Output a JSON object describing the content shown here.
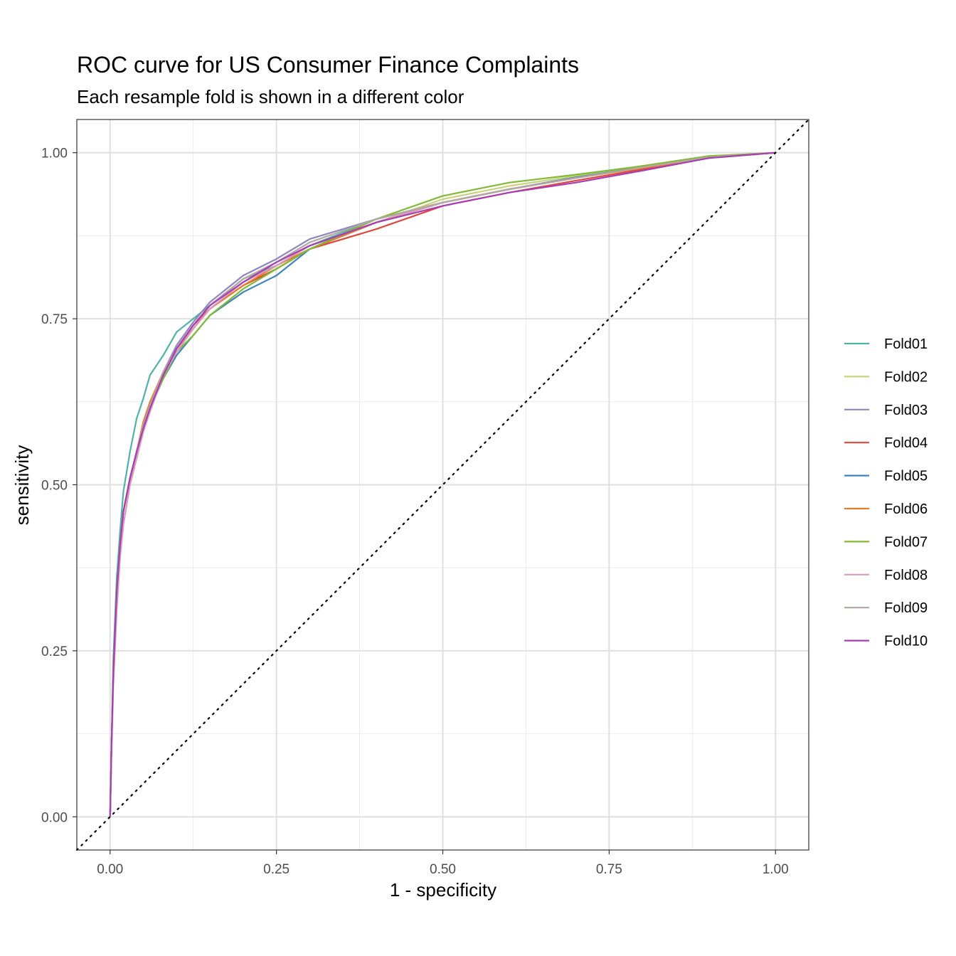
{
  "chart_data": {
    "type": "line",
    "title": "ROC curve for US Consumer Finance Complaints",
    "subtitle": "Each resample fold is shown in a different color",
    "xlabel": "1 - specificity",
    "ylabel": "sensitivity",
    "xlim": [
      -0.05,
      1.05
    ],
    "ylim": [
      -0.05,
      1.05
    ],
    "x_ticks": [
      "0.00",
      "0.25",
      "0.50",
      "0.75",
      "1.00"
    ],
    "y_ticks": [
      "0.00",
      "0.25",
      "0.50",
      "0.75",
      "1.00"
    ],
    "grid": true,
    "legend_position": "right",
    "reference_line": {
      "style": "dotted",
      "color": "#000000",
      "x": [
        -0.05,
        1.05
      ],
      "y": [
        -0.05,
        1.05
      ]
    },
    "x": [
      0,
      0.002,
      0.005,
      0.01,
      0.015,
      0.02,
      0.03,
      0.04,
      0.05,
      0.06,
      0.08,
      0.1,
      0.125,
      0.15,
      0.2,
      0.25,
      0.3,
      0.4,
      0.5,
      0.6,
      0.7,
      0.8,
      0.9,
      1.0
    ],
    "series": [
      {
        "name": "Fold01",
        "color": "#4fb3a5",
        "values": [
          0,
          0.1,
          0.24,
          0.36,
          0.43,
          0.49,
          0.55,
          0.6,
          0.63,
          0.665,
          0.695,
          0.73,
          0.75,
          0.77,
          0.81,
          0.83,
          0.86,
          0.9,
          0.925,
          0.945,
          0.963,
          0.978,
          0.993,
          1.0
        ]
      },
      {
        "name": "Fold02",
        "color": "#c9d47a",
        "values": [
          0,
          0.1,
          0.22,
          0.34,
          0.41,
          0.46,
          0.51,
          0.55,
          0.59,
          0.62,
          0.67,
          0.7,
          0.735,
          0.765,
          0.8,
          0.825,
          0.855,
          0.895,
          0.93,
          0.95,
          0.965,
          0.98,
          0.995,
          1.0
        ]
      },
      {
        "name": "Fold03",
        "color": "#8f85c1",
        "values": [
          0,
          0.1,
          0.22,
          0.34,
          0.41,
          0.46,
          0.51,
          0.55,
          0.59,
          0.62,
          0.67,
          0.71,
          0.745,
          0.775,
          0.815,
          0.84,
          0.87,
          0.9,
          0.925,
          0.945,
          0.962,
          0.978,
          0.993,
          1.0
        ]
      },
      {
        "name": "Fold04",
        "color": "#e0473c",
        "values": [
          0,
          0.1,
          0.22,
          0.34,
          0.41,
          0.46,
          0.51,
          0.55,
          0.59,
          0.62,
          0.67,
          0.705,
          0.74,
          0.765,
          0.8,
          0.825,
          0.855,
          0.885,
          0.92,
          0.94,
          0.958,
          0.975,
          0.992,
          1.0
        ]
      },
      {
        "name": "Fold05",
        "color": "#3f84c0",
        "values": [
          0,
          0.1,
          0.22,
          0.34,
          0.41,
          0.46,
          0.51,
          0.55,
          0.585,
          0.615,
          0.66,
          0.695,
          0.725,
          0.755,
          0.79,
          0.815,
          0.855,
          0.895,
          0.925,
          0.945,
          0.963,
          0.978,
          0.993,
          1.0
        ]
      },
      {
        "name": "Fold06",
        "color": "#e57c2d",
        "values": [
          0,
          0.1,
          0.22,
          0.34,
          0.41,
          0.46,
          0.51,
          0.55,
          0.595,
          0.625,
          0.67,
          0.705,
          0.735,
          0.765,
          0.8,
          0.83,
          0.855,
          0.895,
          0.925,
          0.945,
          0.962,
          0.977,
          0.992,
          1.0
        ]
      },
      {
        "name": "Fold07",
        "color": "#7fbb34",
        "values": [
          0,
          0.1,
          0.22,
          0.34,
          0.41,
          0.46,
          0.51,
          0.55,
          0.585,
          0.615,
          0.66,
          0.7,
          0.725,
          0.755,
          0.795,
          0.825,
          0.855,
          0.9,
          0.935,
          0.955,
          0.967,
          0.98,
          0.995,
          1.0
        ]
      },
      {
        "name": "Fold08",
        "color": "#d99bbd",
        "values": [
          0,
          0.09,
          0.2,
          0.31,
          0.39,
          0.44,
          0.5,
          0.54,
          0.58,
          0.61,
          0.665,
          0.7,
          0.735,
          0.765,
          0.805,
          0.83,
          0.86,
          0.895,
          0.925,
          0.945,
          0.962,
          0.978,
          0.993,
          1.0
        ]
      },
      {
        "name": "Fold09",
        "color": "#b3a7a1",
        "values": [
          0,
          0.1,
          0.22,
          0.34,
          0.41,
          0.46,
          0.51,
          0.55,
          0.59,
          0.62,
          0.67,
          0.705,
          0.74,
          0.77,
          0.81,
          0.835,
          0.865,
          0.9,
          0.925,
          0.945,
          0.962,
          0.978,
          0.993,
          1.0
        ]
      },
      {
        "name": "Fold10",
        "color": "#a63fb4",
        "values": [
          0,
          0.1,
          0.22,
          0.34,
          0.41,
          0.46,
          0.51,
          0.55,
          0.585,
          0.615,
          0.665,
          0.705,
          0.74,
          0.77,
          0.805,
          0.835,
          0.86,
          0.895,
          0.92,
          0.94,
          0.955,
          0.973,
          0.992,
          1.0
        ]
      }
    ]
  }
}
